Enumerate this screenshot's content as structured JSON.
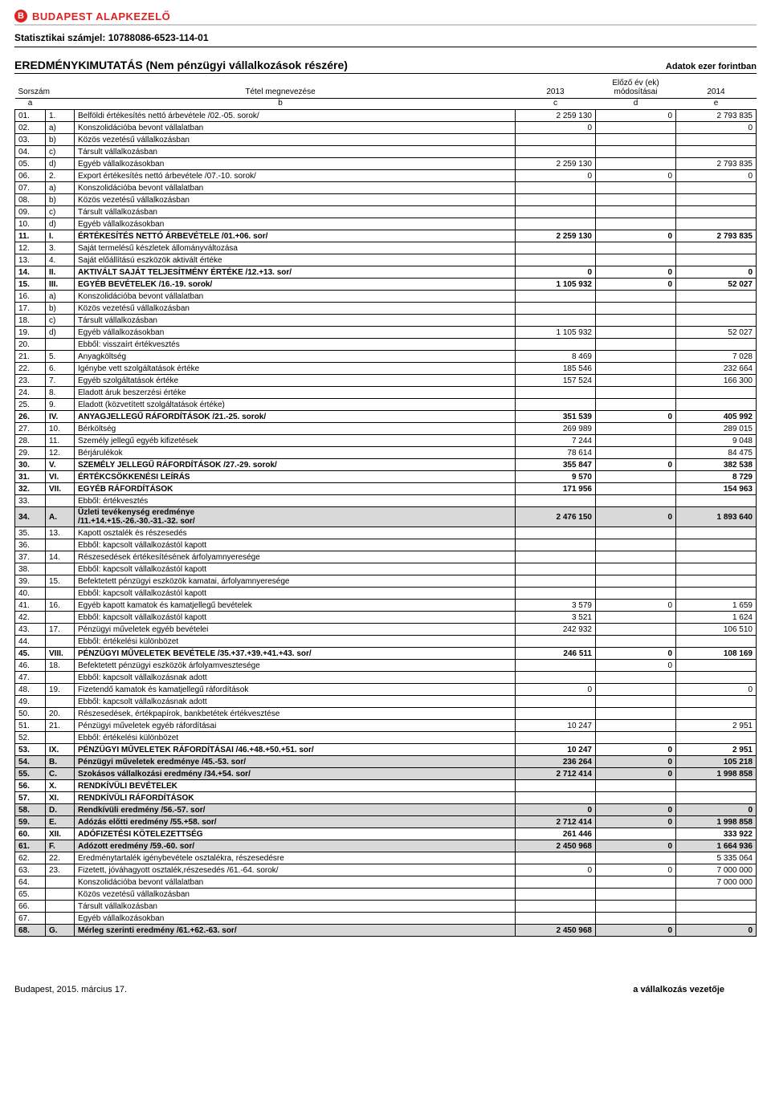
{
  "logo_text": "BUDAPEST ALAPKEZELŐ",
  "stat_id_label": "Statisztikai számjel:",
  "stat_id_value": "10788086-6523-114-01",
  "title": "EREDMÉNYKIMUTATÁS (Nem pénzügyi vállalkozások részére)",
  "unit": "Adatok ezer forintban",
  "headers": {
    "sorszam": "Sorszám",
    "tetel": "Tétel megnevezése",
    "col2013": "2013",
    "col_prev": "Előző év (ek)\nmódosításai",
    "col2014": "2014",
    "a": "a",
    "b": "b",
    "c": "c",
    "d": "d",
    "e": "e"
  },
  "rows": [
    {
      "n": "01.",
      "c": "1.",
      "d": "Belföldi értékesítés nettó árbevétele /02.-05. sorok/",
      "v1": "2 259 130",
      "v2": "0",
      "v3": "2 793 835"
    },
    {
      "n": "02.",
      "c": "a)",
      "d": "Konszolidációba bevont vállalatban",
      "v1": "0",
      "v2": "",
      "v3": "0"
    },
    {
      "n": "03.",
      "c": "b)",
      "d": "Közös vezetésű vállalkozásban",
      "v1": "",
      "v2": "",
      "v3": ""
    },
    {
      "n": "04.",
      "c": "c)",
      "d": "Társult vállalkozásban",
      "v1": "",
      "v2": "",
      "v3": ""
    },
    {
      "n": "05.",
      "c": "d)",
      "d": "Egyéb vállalkozásokban",
      "v1": "2 259 130",
      "v2": "",
      "v3": "2 793 835"
    },
    {
      "n": "06.",
      "c": "2.",
      "d": "Export értékesítés nettó árbevétele /07.-10. sorok/",
      "v1": "0",
      "v2": "0",
      "v3": "0"
    },
    {
      "n": "07.",
      "c": "a)",
      "d": "Konszolidációba bevont vállalatban",
      "v1": "",
      "v2": "",
      "v3": ""
    },
    {
      "n": "08.",
      "c": "b)",
      "d": "Közös vezetésű vállalkozásban",
      "v1": "",
      "v2": "",
      "v3": ""
    },
    {
      "n": "09.",
      "c": "c)",
      "d": "Társult vállalkozásban",
      "v1": "",
      "v2": "",
      "v3": ""
    },
    {
      "n": "10.",
      "c": "d)",
      "d": "Egyéb vállalkozásokban",
      "v1": "",
      "v2": "",
      "v3": ""
    },
    {
      "n": "11.",
      "c": "I.",
      "d": "ÉRTÉKESÍTÉS NETTÓ ÁRBEVÉTELE /01.+06. sor/",
      "v1": "2 259 130",
      "v2": "0",
      "v3": "2 793 835",
      "bold": true
    },
    {
      "n": "12.",
      "c": "3.",
      "d": "Saját termelésű készletek állományváltozása",
      "v1": "",
      "v2": "",
      "v3": ""
    },
    {
      "n": "13.",
      "c": "4.",
      "d": "Saját előállítású eszközök aktivált értéke",
      "v1": "",
      "v2": "",
      "v3": ""
    },
    {
      "n": "14.",
      "c": "II.",
      "d": "AKTIVÁLT SAJÁT TELJESÍTMÉNY ÉRTÉKE /12.+13. sor/",
      "v1": "0",
      "v2": "0",
      "v3": "0",
      "bold": true
    },
    {
      "n": "15.",
      "c": "III.",
      "d": "EGYÉB BEVÉTELEK /16.-19. sorok/",
      "v1": "1 105 932",
      "v2": "0",
      "v3": "52 027",
      "bold": true
    },
    {
      "n": "16.",
      "c": "a)",
      "d": "Konszolidációba bevont vállalatban",
      "v1": "",
      "v2": "",
      "v3": ""
    },
    {
      "n": "17.",
      "c": "b)",
      "d": "Közös vezetésű vállalkozásban",
      "v1": "",
      "v2": "",
      "v3": ""
    },
    {
      "n": "18.",
      "c": "c)",
      "d": "Társult vállalkozásban",
      "v1": "",
      "v2": "",
      "v3": ""
    },
    {
      "n": "19.",
      "c": "d)",
      "d": "Egyéb vállalkozásokban",
      "v1": "1 105 932",
      "v2": "",
      "v3": "52 027"
    },
    {
      "n": "20.",
      "c": "",
      "d": "Ebből: visszaírt értékvesztés",
      "v1": "",
      "v2": "",
      "v3": ""
    },
    {
      "n": "21.",
      "c": "5.",
      "d": "Anyagköltség",
      "v1": "8 469",
      "v2": "",
      "v3": "7 028"
    },
    {
      "n": "22.",
      "c": "6.",
      "d": "Igénybe vett szolgáltatások értéke",
      "v1": "185 546",
      "v2": "",
      "v3": "232 664"
    },
    {
      "n": "23.",
      "c": "7.",
      "d": "Egyéb szolgáltatások értéke",
      "v1": "157 524",
      "v2": "",
      "v3": "166 300"
    },
    {
      "n": "24.",
      "c": "8.",
      "d": "Eladott áruk beszerzési értéke",
      "v1": "",
      "v2": "",
      "v3": ""
    },
    {
      "n": "25.",
      "c": "9.",
      "d": "Eladott (közvetített szolgáltatások értéke)",
      "v1": "",
      "v2": "",
      "v3": ""
    },
    {
      "n": "26.",
      "c": "IV.",
      "d": "ANYAGJELLEGŰ RÁFORDÍTÁSOK /21.-25. sorok/",
      "v1": "351 539",
      "v2": "0",
      "v3": "405 992",
      "bold": true
    },
    {
      "n": "27.",
      "c": "10.",
      "d": "Bérköltség",
      "v1": "269 989",
      "v2": "",
      "v3": "289 015"
    },
    {
      "n": "28.",
      "c": "11.",
      "d": "Személy jellegű egyéb kifizetések",
      "v1": "7 244",
      "v2": "",
      "v3": "9 048"
    },
    {
      "n": "29.",
      "c": "12.",
      "d": "Bérjárulékok",
      "v1": "78 614",
      "v2": "",
      "v3": "84 475"
    },
    {
      "n": "30.",
      "c": "V.",
      "d": "SZEMÉLY JELLEGŰ RÁFORDÍTÁSOK /27.-29. sorok/",
      "v1": "355 847",
      "v2": "0",
      "v3": "382 538",
      "bold": true
    },
    {
      "n": "31.",
      "c": "VI.",
      "d": "ÉRTÉKCSÖKKENÉSI LEÍRÁS",
      "v1": "9 570",
      "v2": "",
      "v3": "8 729",
      "bold": true
    },
    {
      "n": "32.",
      "c": "VII.",
      "d": "EGYÉB RÁFORDÍTÁSOK",
      "v1": "171 956",
      "v2": "",
      "v3": "154 963",
      "bold": true
    },
    {
      "n": "33.",
      "c": "",
      "d": "Ebből: értékvesztés",
      "v1": "",
      "v2": "",
      "v3": ""
    },
    {
      "n": "34.",
      "c": "A.",
      "d": "Üzleti tevékenység eredménye\n/11.+14.+15.-26.-30.-31.-32. sor/",
      "v1": "2 476 150",
      "v2": "0",
      "v3": "1 893 640",
      "shade": true
    },
    {
      "n": "35.",
      "c": "13.",
      "d": "Kapott osztalék és részesedés",
      "v1": "",
      "v2": "",
      "v3": ""
    },
    {
      "n": "36.",
      "c": "",
      "d": "Ebből: kapcsolt vállalkozástól kapott",
      "v1": "",
      "v2": "",
      "v3": ""
    },
    {
      "n": "37.",
      "c": "14.",
      "d": "Részesedések értékesítésének árfolyamnyeresége",
      "v1": "",
      "v2": "",
      "v3": ""
    },
    {
      "n": "38.",
      "c": "",
      "d": "Ebből: kapcsolt vállalkozástól kapott",
      "v1": "",
      "v2": "",
      "v3": ""
    },
    {
      "n": "39.",
      "c": "15.",
      "d": "Befektetett pénzügyi eszközök kamatai, árfolyamnyeresége",
      "v1": "",
      "v2": "",
      "v3": ""
    },
    {
      "n": "40.",
      "c": "",
      "d": "Ebből: kapcsolt vállalkozástól kapott",
      "v1": "",
      "v2": "",
      "v3": ""
    },
    {
      "n": "41.",
      "c": "16.",
      "d": "Egyéb kapott kamatok és kamatjellegű bevételek",
      "v1": "3 579",
      "v2": "0",
      "v3": "1 659"
    },
    {
      "n": "42.",
      "c": "",
      "d": "Ebből: kapcsolt vállalkozástól kapott",
      "v1": "3 521",
      "v2": "",
      "v3": "1 624"
    },
    {
      "n": "43.",
      "c": "17.",
      "d": "Pénzügyi műveletek egyéb bevételei",
      "v1": "242 932",
      "v2": "",
      "v3": "106 510"
    },
    {
      "n": "44.",
      "c": "",
      "d": "Ebből: értékelési különbözet",
      "v1": "",
      "v2": "",
      "v3": ""
    },
    {
      "n": "45.",
      "c": "VIII.",
      "d": "PÉNZÜGYI MŰVELETEK BEVÉTELE /35.+37.+39.+41.+43. sor/",
      "v1": "246 511",
      "v2": "0",
      "v3": "108 169",
      "bold": true
    },
    {
      "n": "46.",
      "c": "18.",
      "d": "Befektetett pénzügyi eszközök árfolyamvesztesége",
      "v1": "",
      "v2": "0",
      "v3": ""
    },
    {
      "n": "47.",
      "c": "",
      "d": "Ebből: kapcsolt vállalkozásnak adott",
      "v1": "",
      "v2": "",
      "v3": ""
    },
    {
      "n": "48.",
      "c": "19.",
      "d": "Fizetendő kamatok és kamatjellegű ráfordítások",
      "v1": "0",
      "v2": "",
      "v3": "0"
    },
    {
      "n": "49.",
      "c": "",
      "d": "Ebből: kapcsolt vállalkozásnak adott",
      "v1": "",
      "v2": "",
      "v3": ""
    },
    {
      "n": "50.",
      "c": "20.",
      "d": "Részesedések, értékpapírok, bankbetétek értékvesztése",
      "v1": "",
      "v2": "",
      "v3": ""
    },
    {
      "n": "51.",
      "c": "21.",
      "d": "Pénzügyi műveletek egyéb ráfordításai",
      "v1": "10 247",
      "v2": "",
      "v3": "2 951"
    },
    {
      "n": "52.",
      "c": "",
      "d": "Ebből: értékelési különbözet",
      "v1": "",
      "v2": "",
      "v3": ""
    },
    {
      "n": "53.",
      "c": "IX.",
      "d": "PÉNZÜGYI MŰVELETEK RÁFORDÍTÁSAI /46.+48.+50.+51. sor/",
      "v1": "10 247",
      "v2": "0",
      "v3": "2 951",
      "bold": true
    },
    {
      "n": "54.",
      "c": "B.",
      "d": "Pénzügyi műveletek eredménye /45.-53. sor/",
      "v1": "236 264",
      "v2": "0",
      "v3": "105 218",
      "shade": true
    },
    {
      "n": "55.",
      "c": "C.",
      "d": "Szokásos vállalkozási eredmény /34.+54. sor/",
      "v1": "2 712 414",
      "v2": "0",
      "v3": "1 998 858",
      "shade": true
    },
    {
      "n": "56.",
      "c": "X.",
      "d": "RENDKÍVÜLI BEVÉTELEK",
      "v1": "",
      "v2": "",
      "v3": "",
      "bold": true
    },
    {
      "n": "57.",
      "c": "XI.",
      "d": "RENDKÍVÜLI RÁFORDÍTÁSOK",
      "v1": "",
      "v2": "",
      "v3": "",
      "bold": true
    },
    {
      "n": "58.",
      "c": "D.",
      "d": "Rendkívüli eredmény /56.-57. sor/",
      "v1": "0",
      "v2": "0",
      "v3": "0",
      "shade": true
    },
    {
      "n": "59.",
      "c": "E.",
      "d": "Adózás előtti eredmény /55.+58. sor/",
      "v1": "2 712 414",
      "v2": "0",
      "v3": "1 998 858",
      "shade": true
    },
    {
      "n": "60.",
      "c": "XII.",
      "d": "ADÓFIZETÉSI KÖTELEZETTSÉG",
      "v1": "261 446",
      "v2": "",
      "v3": "333 922",
      "bold": true
    },
    {
      "n": "61.",
      "c": "F.",
      "d": "Adózott eredmény /59.-60. sor/",
      "v1": "2 450 968",
      "v2": "0",
      "v3": "1 664 936",
      "shade": true
    },
    {
      "n": "62.",
      "c": "22.",
      "d": "Eredménytartalék igénybevétele osztalékra, részesedésre",
      "v1": "",
      "v2": "",
      "v3": "5 335 064"
    },
    {
      "n": "63.",
      "c": "23.",
      "d": "Fizetett, jóváhagyott osztalék,részesedés /61.-64. sorok/",
      "v1": "0",
      "v2": "0",
      "v3": "7 000 000"
    },
    {
      "n": "64.",
      "c": "",
      "d": "Konszolidációba bevont vállalatban",
      "v1": "",
      "v2": "",
      "v3": "7 000 000"
    },
    {
      "n": "65.",
      "c": "",
      "d": "Közös vezetésű vállalkozásban",
      "v1": "",
      "v2": "",
      "v3": ""
    },
    {
      "n": "66.",
      "c": "",
      "d": "Társult vállalkozásban",
      "v1": "",
      "v2": "",
      "v3": ""
    },
    {
      "n": "67.",
      "c": "",
      "d": "Egyéb vállalkozásokban",
      "v1": "",
      "v2": "",
      "v3": ""
    },
    {
      "n": "68.",
      "c": "G.",
      "d": "Mérleg szerinti eredmény /61.+62.-63. sor/",
      "v1": "2 450 968",
      "v2": "0",
      "v3": "0",
      "shade": true
    }
  ],
  "footer": {
    "date": "Budapest, 2015. március 17.",
    "signer": "a vállalkozás vezetője"
  }
}
